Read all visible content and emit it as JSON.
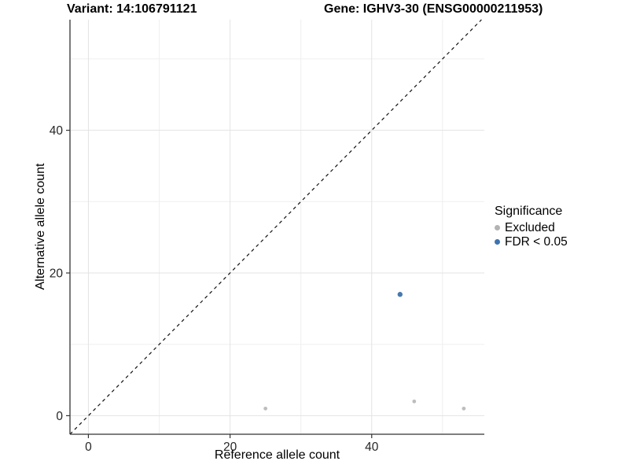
{
  "chart_data": {
    "type": "scatter",
    "title_left": "Variant: 14:106791121",
    "title_right": "Gene: IGHV3-30 (ENSG00000211953)",
    "xlabel": "Reference allele count",
    "ylabel": "Alternative allele count",
    "xlim": [
      -2.6,
      55.9
    ],
    "ylim": [
      -2.6,
      55.5
    ],
    "xticks": [
      0,
      20,
      40
    ],
    "yticks": [
      0,
      20,
      40
    ],
    "grid_minor_x": [
      10,
      30,
      50
    ],
    "grid_minor_y": [
      10,
      30,
      50
    ],
    "grid": "on",
    "identity_line": {
      "style": "dashed",
      "slope": 1,
      "intercept": 0,
      "from": -2.6,
      "to": 55.5
    },
    "series": [
      {
        "name": "Excluded",
        "color": "#bdbdbd",
        "radius": 2.4,
        "points": [
          [
            25,
            1
          ],
          [
            46,
            2
          ],
          [
            53,
            1
          ]
        ]
      },
      {
        "name": "FDR < 0.05",
        "color": "#4878ad",
        "radius": 3.2,
        "points": [
          [
            44,
            17
          ]
        ]
      }
    ],
    "legend": {
      "title": "Significance",
      "position": "right-center",
      "items": [
        {
          "label": "Excluded",
          "color": "#b3b3b3"
        },
        {
          "label": "FDR < 0.05",
          "color": "#3d74b0"
        }
      ]
    },
    "colors": {
      "background": "#ffffff",
      "axis": "#333333",
      "grid_major": "#e3e3e3",
      "grid_minor": "#efefef",
      "identity_line": "#111111",
      "text": "#000000"
    }
  }
}
